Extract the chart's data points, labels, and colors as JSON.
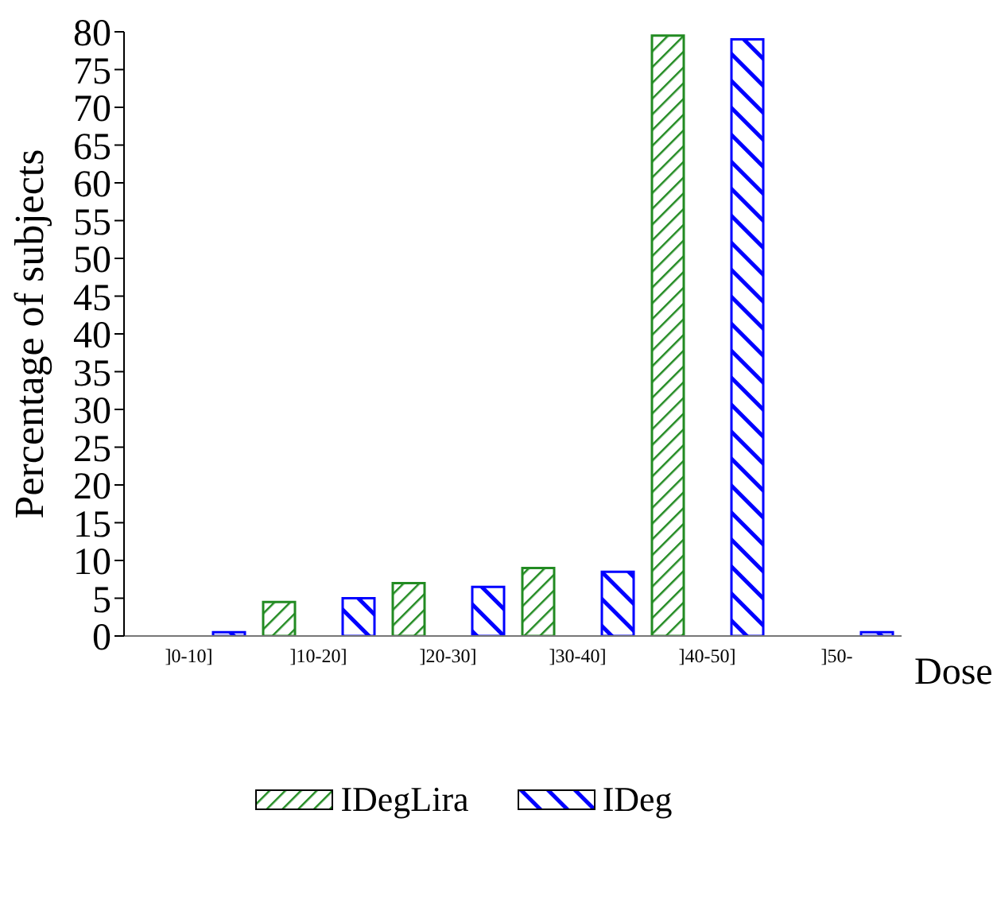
{
  "chart_data": {
    "type": "bar",
    "xlabel": "Dose",
    "ylabel": "Percentage of subjects",
    "categories": [
      "]0-10]",
      "]10-20]",
      "]20-30]",
      "]30-40]",
      "]40-50]",
      "]50-"
    ],
    "series": [
      {
        "name": "IDegLira",
        "color": "#228b22",
        "values": [
          0,
          4.5,
          7,
          9,
          79.5,
          0
        ]
      },
      {
        "name": "IDeg",
        "color": "#0000ff",
        "values": [
          0.5,
          5,
          6.5,
          8.5,
          79,
          0.5
        ]
      }
    ],
    "ylim": [
      0,
      80
    ],
    "yticks": [
      0,
      5,
      10,
      15,
      20,
      25,
      30,
      35,
      40,
      45,
      50,
      55,
      60,
      65,
      70,
      75,
      80
    ],
    "grid": false,
    "legend": "bottom"
  }
}
